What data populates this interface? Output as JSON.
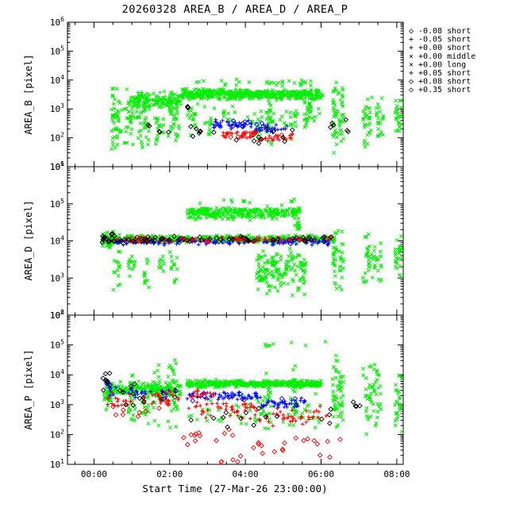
{
  "chart_data": {
    "type": "scatter",
    "y_scale": "log",
    "title": "20260328 AREA_B / AREA_D / AREA_P",
    "xlabel": "Start Time (27-Mar-26 23:00:00)",
    "x_axis": {
      "min_hours": -0.7,
      "max_hours": 8.17,
      "major_ticks": [
        0,
        2,
        4,
        6,
        8
      ],
      "tick_labels": [
        "00:00",
        "02:00",
        "04:00",
        "06:00",
        "08:00"
      ]
    },
    "colors": {
      "g": "#00ee00",
      "b": "#0000ff",
      "r": "#ff0000",
      "k": "#000000"
    },
    "marker_codes": {
      "p": "plus",
      "x": "cross",
      "d": "diamond"
    },
    "legend": [
      {
        "marker": "d",
        "color": "b",
        "label": "-0.08 short"
      },
      {
        "marker": "p",
        "color": "b",
        "label": "-0.05 short"
      },
      {
        "marker": "p",
        "color": "g",
        "label": "+0.00 short"
      },
      {
        "marker": "x",
        "color": "g",
        "label": "+0.00 middle"
      },
      {
        "marker": "x",
        "color": "g",
        "label": "+0.00 long"
      },
      {
        "marker": "p",
        "color": "r",
        "label": "+0.05 short"
      },
      {
        "marker": "d",
        "color": "r",
        "label": "+0.08 short"
      },
      {
        "marker": "d",
        "color": "k",
        "label": "+0.35 short"
      }
    ],
    "panels": [
      {
        "ylabel": "AREA_B [pixel]",
        "log_min": 1,
        "log_max": 6,
        "ylim": [
          10,
          1000000
        ],
        "clusters": [
          [
            "x",
            "g",
            0.45,
            0.75,
            1.5,
            4.15,
            45
          ],
          [
            "x",
            "g",
            0.8,
            1.05,
            1.6,
            3.9,
            30
          ],
          [
            "x",
            "g",
            1.1,
            1.45,
            1.4,
            3.8,
            35
          ],
          [
            "x",
            "g",
            1.6,
            1.85,
            1.5,
            3.7,
            25
          ],
          [
            "x",
            "g",
            1.95,
            2.25,
            1.3,
            4.0,
            35
          ],
          [
            "x",
            "g",
            2.55,
            2.7,
            2.0,
            3.3,
            12
          ],
          [
            "x",
            "g",
            2.95,
            3.1,
            1.6,
            3.0,
            10
          ],
          [
            "x",
            "g",
            4.25,
            4.4,
            1.5,
            3.2,
            12
          ],
          [
            "x",
            "g",
            4.55,
            4.75,
            1.4,
            4.1,
            20
          ],
          [
            "x",
            "g",
            5.15,
            5.35,
            1.6,
            3.4,
            12
          ],
          [
            "x",
            "g",
            5.55,
            5.75,
            1.5,
            4.15,
            22
          ],
          [
            "x",
            "g",
            6.3,
            6.6,
            1.45,
            4.2,
            55
          ],
          [
            "x",
            "g",
            7.1,
            7.35,
            1.6,
            3.8,
            30
          ],
          [
            "x",
            "g",
            7.45,
            7.65,
            1.7,
            3.6,
            22
          ],
          [
            "x",
            "g",
            7.95,
            8.12,
            1.9,
            3.7,
            22
          ],
          [
            "x",
            "g",
            2.3,
            6.05,
            3.28,
            3.72,
            320
          ],
          [
            "p",
            "g",
            2.3,
            6.05,
            3.3,
            3.7,
            200
          ],
          [
            "x",
            "g",
            0.95,
            2.3,
            2.95,
            3.65,
            90
          ],
          [
            "p",
            "g",
            1.0,
            2.3,
            3.0,
            3.6,
            50
          ],
          [
            "x",
            "g",
            2.4,
            6.0,
            2.3,
            3.25,
            50
          ],
          [
            "x",
            "g",
            2.5,
            5.8,
            3.75,
            4.05,
            30
          ],
          [
            "p",
            "b",
            3.15,
            4.2,
            2.25,
            2.65,
            40
          ],
          [
            "p",
            "b",
            4.2,
            5.1,
            2.1,
            2.5,
            30
          ],
          [
            "d",
            "b",
            3.4,
            4.6,
            2.3,
            2.6,
            8
          ],
          [
            "p",
            "r",
            3.4,
            4.3,
            1.95,
            2.3,
            30
          ],
          [
            "p",
            "r",
            4.3,
            5.3,
            1.85,
            2.2,
            25
          ],
          [
            "d",
            "r",
            3.2,
            5.0,
            1.9,
            2.25,
            8
          ],
          [
            "d",
            "k",
            1.3,
            3.2,
            1.9,
            2.6,
            12
          ],
          [
            "d",
            "k",
            3.3,
            5.5,
            1.7,
            2.5,
            10
          ],
          [
            "d",
            "k",
            5.8,
            6.9,
            1.8,
            2.9,
            6
          ],
          [
            "d",
            "k",
            2.4,
            3.0,
            2.9,
            3.2,
            4
          ]
        ]
      },
      {
        "ylabel": "AREA_D [pixel]",
        "log_min": 2,
        "log_max": 6,
        "ylim": [
          100,
          1000000
        ],
        "clusters": [
          [
            "x",
            "g",
            0.3,
            6.35,
            3.92,
            4.18,
            300
          ],
          [
            "p",
            "g",
            0.3,
            6.35,
            3.95,
            4.15,
            150
          ],
          [
            "p",
            "b",
            0.35,
            6.3,
            3.88,
            4.05,
            110
          ],
          [
            "p",
            "r",
            0.35,
            6.3,
            3.95,
            4.12,
            110
          ],
          [
            "d",
            "k",
            0.35,
            6.3,
            3.95,
            4.15,
            70
          ],
          [
            "d",
            "b",
            0.5,
            6.2,
            3.9,
            4.05,
            12
          ],
          [
            "d",
            "r",
            0.5,
            6.2,
            3.95,
            4.1,
            12
          ],
          [
            "x",
            "g",
            0.2,
            0.55,
            3.8,
            4.3,
            40
          ],
          [
            "d",
            "k",
            0.2,
            0.55,
            3.9,
            4.25,
            15
          ],
          [
            "x",
            "g",
            2.45,
            5.45,
            4.55,
            4.95,
            220
          ],
          [
            "p",
            "g",
            2.5,
            5.4,
            4.6,
            4.9,
            80
          ],
          [
            "x",
            "g",
            2.6,
            5.3,
            4.95,
            5.15,
            12
          ],
          [
            "x",
            "g",
            0.5,
            0.7,
            2.6,
            3.8,
            15
          ],
          [
            "x",
            "g",
            0.9,
            1.1,
            2.8,
            3.8,
            12
          ],
          [
            "x",
            "g",
            1.3,
            1.5,
            2.5,
            3.7,
            12
          ],
          [
            "x",
            "g",
            1.7,
            1.9,
            3.0,
            3.8,
            10
          ],
          [
            "x",
            "g",
            2.0,
            2.2,
            2.6,
            3.8,
            12
          ],
          [
            "x",
            "g",
            4.3,
            5.0,
            2.45,
            3.85,
            90
          ],
          [
            "x",
            "g",
            5.0,
            5.6,
            2.5,
            3.9,
            60
          ],
          [
            "x",
            "g",
            5.3,
            5.45,
            4.2,
            4.6,
            10
          ],
          [
            "x",
            "g",
            6.3,
            6.6,
            2.5,
            4.4,
            45
          ],
          [
            "x",
            "g",
            7.1,
            7.6,
            2.6,
            4.3,
            45
          ],
          [
            "x",
            "g",
            7.95,
            8.12,
            2.9,
            4.2,
            25
          ]
        ]
      },
      {
        "ylabel": "AREA_P [pixel]",
        "log_min": 1,
        "log_max": 6,
        "ylim": [
          10,
          1000000
        ],
        "clusters": [
          [
            "x",
            "g",
            2.45,
            6.0,
            3.55,
            3.85,
            300
          ],
          [
            "p",
            "g",
            2.45,
            6.0,
            3.6,
            3.8,
            150
          ],
          [
            "x",
            "g",
            0.3,
            2.3,
            3.25,
            3.8,
            130
          ],
          [
            "p",
            "g",
            0.4,
            2.2,
            3.3,
            3.7,
            60
          ],
          [
            "x",
            "g",
            0.25,
            0.45,
            2.6,
            3.9,
            20
          ],
          [
            "x",
            "g",
            0.9,
            1.15,
            2.0,
            4.1,
            25
          ],
          [
            "x",
            "g",
            1.25,
            1.45,
            2.2,
            4.3,
            20
          ],
          [
            "x",
            "g",
            1.55,
            1.75,
            1.9,
            4.6,
            25
          ],
          [
            "x",
            "g",
            1.95,
            2.2,
            1.8,
            4.9,
            30
          ],
          [
            "x",
            "g",
            4.5,
            4.7,
            1.9,
            4.4,
            20
          ],
          [
            "x",
            "g",
            5.2,
            5.4,
            2.0,
            4.6,
            15
          ],
          [
            "x",
            "g",
            6.3,
            6.6,
            1.7,
            4.9,
            55
          ],
          [
            "x",
            "g",
            7.1,
            7.6,
            1.8,
            4.6,
            50
          ],
          [
            "x",
            "g",
            7.95,
            8.15,
            2.0,
            4.3,
            25
          ],
          [
            "x",
            "g",
            4.4,
            6.5,
            4.9,
            5.2,
            8
          ],
          [
            "x",
            "g",
            2.5,
            6.0,
            2.1,
            3.4,
            60
          ],
          [
            "p",
            "b",
            2.45,
            4.4,
            3.15,
            3.45,
            60
          ],
          [
            "p",
            "b",
            4.4,
            5.6,
            2.85,
            3.25,
            40
          ],
          [
            "p",
            "b",
            0.4,
            2.2,
            3.2,
            3.6,
            30
          ],
          [
            "d",
            "b",
            0.3,
            0.5,
            3.5,
            3.9,
            5
          ],
          [
            "d",
            "b",
            2.5,
            5.5,
            3.0,
            3.4,
            8
          ],
          [
            "p",
            "r",
            0.35,
            2.25,
            2.85,
            3.5,
            50
          ],
          [
            "p",
            "r",
            2.5,
            4.3,
            2.5,
            3.2,
            45
          ],
          [
            "p",
            "r",
            4.3,
            6.2,
            2.2,
            3.0,
            40
          ],
          [
            "p",
            "r",
            2.5,
            3.2,
            3.2,
            3.5,
            15
          ],
          [
            "d",
            "r",
            2.3,
            4.0,
            1.5,
            2.4,
            12
          ],
          [
            "d",
            "r",
            4.0,
            6.6,
            1.0,
            2.2,
            18
          ],
          [
            "d",
            "r",
            0.5,
            2.0,
            2.4,
            3.0,
            8
          ],
          [
            "d",
            "r",
            3.3,
            4.6,
            0.95,
            1.3,
            5
          ],
          [
            "d",
            "k",
            0.2,
            0.45,
            3.4,
            4.35,
            8
          ],
          [
            "d",
            "k",
            0.6,
            2.2,
            2.9,
            3.8,
            15
          ],
          [
            "d",
            "k",
            2.5,
            6.3,
            2.0,
            3.1,
            15
          ],
          [
            "d",
            "k",
            6.8,
            7.2,
            2.8,
            3.1,
            4
          ]
        ]
      }
    ]
  }
}
